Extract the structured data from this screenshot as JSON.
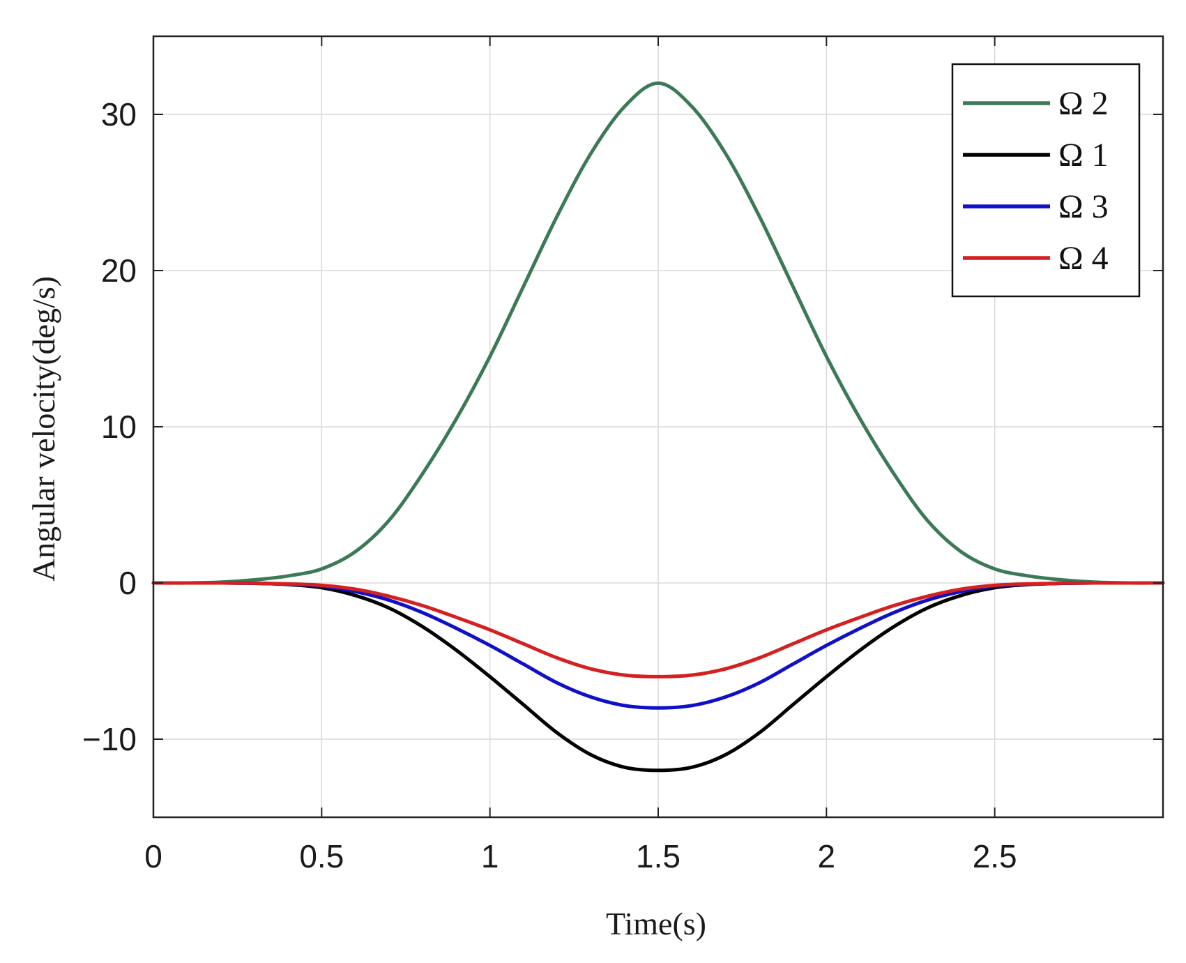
{
  "chart_data": {
    "type": "line",
    "title": "",
    "xlabel": "Time(s)",
    "ylabel": "Angular velocity(deg/s)",
    "xlim": [
      0,
      3
    ],
    "ylim": [
      -15,
      35
    ],
    "xticks": [
      0,
      0.5,
      1,
      1.5,
      2,
      2.5
    ],
    "xtick_labels": [
      "0",
      "0.5",
      "1",
      "1.5",
      "2",
      "2.5"
    ],
    "yticks": [
      -10,
      0,
      10,
      20,
      30
    ],
    "ytick_labels": [
      "−10",
      "0",
      "10",
      "20",
      "30"
    ],
    "grid": true,
    "legend_position": "top-right",
    "x": [
      0,
      0.1,
      0.2,
      0.3,
      0.4,
      0.5,
      0.6,
      0.7,
      0.8,
      0.9,
      1.0,
      1.1,
      1.2,
      1.3,
      1.4,
      1.5,
      1.6,
      1.7,
      1.8,
      1.9,
      2.0,
      2.1,
      2.2,
      2.3,
      2.4,
      2.5,
      2.6,
      2.7,
      2.8,
      2.9,
      3.0
    ],
    "series": [
      {
        "name": "Ω 2",
        "color": "#3c7a57",
        "values": [
          0,
          0,
          0.05,
          0.2,
          0.45,
          0.9,
          2,
          4,
          7,
          10.5,
          14.5,
          19,
          23.5,
          27.5,
          30.5,
          32,
          30.5,
          27.5,
          23.5,
          19,
          14.5,
          10.5,
          7,
          4,
          2,
          0.9,
          0.45,
          0.2,
          0.05,
          0,
          0
        ]
      },
      {
        "name": "Ω 1",
        "color": "#000000",
        "values": [
          0,
          0,
          0,
          -0.02,
          -0.1,
          -0.3,
          -0.8,
          -1.6,
          -2.8,
          -4.3,
          -6,
          -7.8,
          -9.6,
          -11,
          -11.8,
          -12,
          -11.8,
          -11,
          -9.6,
          -7.8,
          -6,
          -4.3,
          -2.8,
          -1.6,
          -0.8,
          -0.3,
          -0.1,
          -0.02,
          0,
          0,
          0
        ]
      },
      {
        "name": "Ω 3",
        "color": "#1010c8",
        "values": [
          0,
          0,
          0,
          -0.02,
          -0.08,
          -0.2,
          -0.55,
          -1.1,
          -1.9,
          -2.9,
          -4,
          -5.2,
          -6.4,
          -7.3,
          -7.85,
          -8,
          -7.85,
          -7.3,
          -6.4,
          -5.2,
          -4,
          -2.9,
          -1.9,
          -1.1,
          -0.55,
          -0.2,
          -0.08,
          -0.02,
          0,
          0,
          0
        ]
      },
      {
        "name": "Ω 4",
        "color": "#d42020",
        "values": [
          0,
          0,
          0,
          -0.01,
          -0.06,
          -0.15,
          -0.4,
          -0.85,
          -1.45,
          -2.2,
          -3,
          -3.9,
          -4.8,
          -5.5,
          -5.9,
          -6,
          -5.9,
          -5.5,
          -4.8,
          -3.9,
          -3,
          -2.2,
          -1.45,
          -0.85,
          -0.4,
          -0.15,
          -0.06,
          -0.01,
          0,
          0,
          0
        ]
      }
    ]
  }
}
